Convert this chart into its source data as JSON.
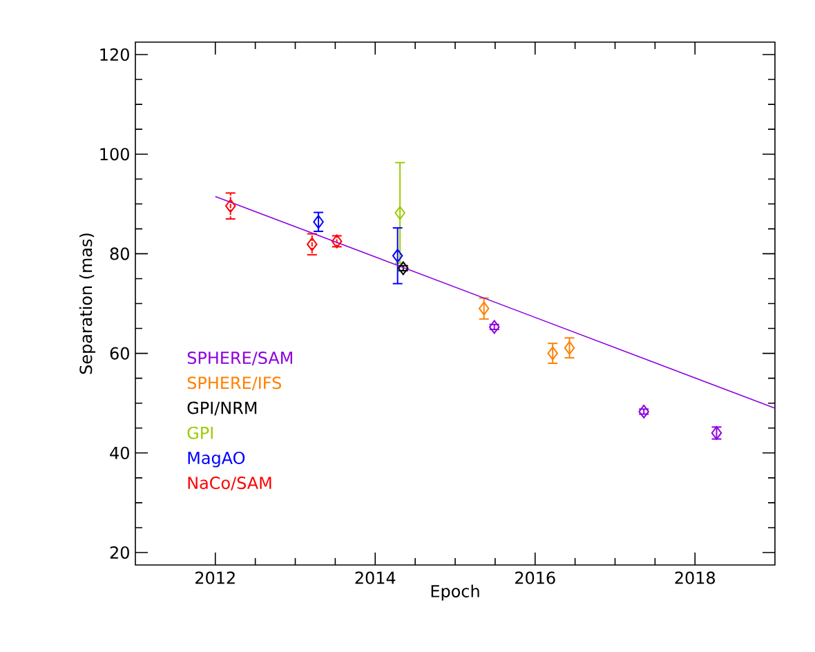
{
  "chart_data": {
    "type": "scatter",
    "xlabel": "Epoch",
    "ylabel": "Separation (mas)",
    "xlim": [
      2011,
      2019
    ],
    "ylim": [
      17.5,
      122.5
    ],
    "xticks": [
      2012,
      2014,
      2016,
      2018
    ],
    "yticks": [
      20,
      40,
      60,
      80,
      100,
      120
    ],
    "marker": "diamond",
    "legend": "bottom left",
    "grid": false,
    "series": [
      {
        "name": "SPHERE/SAM",
        "color": "#8f00e0",
        "x": [
          2015.49,
          2017.36,
          2018.27
        ],
        "values": [
          65.3,
          48.3,
          44.0
        ],
        "errors": [
          0.5,
          0.5,
          1.2
        ]
      },
      {
        "name": "SPHERE/IFS",
        "color": "#ff8000",
        "x": [
          2015.36,
          2016.22,
          2016.43
        ],
        "values": [
          69.0,
          60.0,
          61.1
        ],
        "errors": [
          2.1,
          2.0,
          2.0
        ]
      },
      {
        "name": "GPI/NRM",
        "color": "#000000",
        "x": [
          2014.35
        ],
        "values": [
          77.1
        ],
        "errors": [
          0.5
        ]
      },
      {
        "name": "GPI",
        "color": "#99cc00",
        "x": [
          2014.31
        ],
        "values": [
          88.2
        ],
        "errors": [
          10.1
        ]
      },
      {
        "name": "MagAO",
        "color": "#0000ff",
        "x": [
          2013.29,
          2014.28
        ],
        "values": [
          86.4,
          79.6
        ],
        "errors": [
          1.9,
          5.6
        ]
      },
      {
        "name": "NaCo/SAM",
        "color": "#ff0000",
        "x": [
          2012.19,
          2013.21,
          2013.52
        ],
        "values": [
          89.6,
          81.9,
          82.5
        ],
        "errors": [
          2.6,
          2.1,
          1.1
        ]
      },
      {
        "type": "line",
        "color": "#8f00e0",
        "x": [
          2012,
          2019
        ],
        "values": [
          91.5,
          49.0
        ],
        "marker": "none"
      }
    ]
  }
}
